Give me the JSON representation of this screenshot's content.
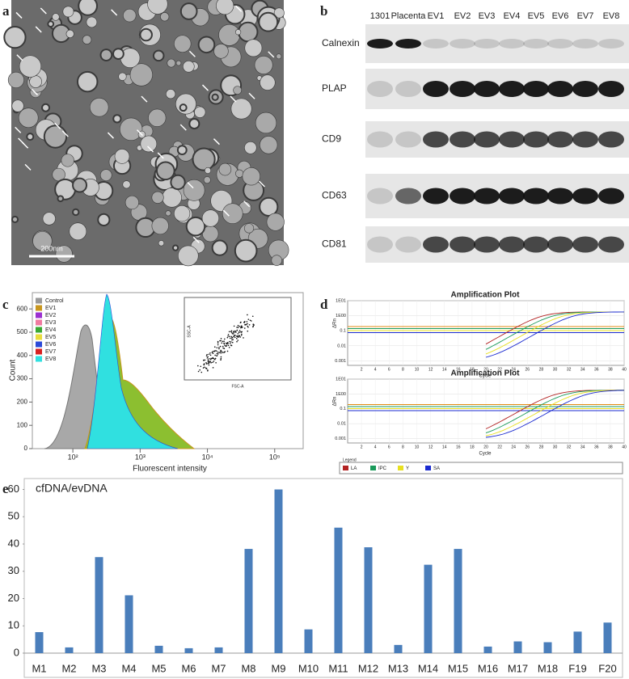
{
  "panel_labels": [
    "a",
    "b",
    "c",
    "d",
    "e"
  ],
  "panel_a": {
    "scale_bar": "200nm"
  },
  "panel_b": {
    "columns": [
      "1301",
      "Placenta",
      "EV1",
      "EV2",
      "EV3",
      "EV4",
      "EV5",
      "EV6",
      "EV7",
      "EV8"
    ],
    "rows": [
      "Calnexin",
      "PLAP",
      "CD9",
      "CD63",
      "CD81"
    ]
  },
  "panel_c": {
    "y_label": "Count",
    "x_label": "Fluorescent intensity",
    "ylim": [
      0,
      670
    ],
    "yticks": [
      0,
      100,
      200,
      300,
      400,
      500,
      600
    ],
    "xlim": [
      25,
      265000
    ],
    "log_x": true,
    "xticks": [
      {
        "value": 100,
        "label": "10²"
      },
      {
        "value": 1000,
        "label": "10³"
      },
      {
        "value": 10000,
        "label": "10⁴"
      },
      {
        "value": 100000,
        "label": "10⁵"
      }
    ],
    "legend": [
      {
        "name": "Control",
        "color": "#9a9a9a"
      },
      {
        "name": "EV1",
        "color": "#c8961e"
      },
      {
        "name": "EV2",
        "color": "#9b30d0"
      },
      {
        "name": "EV3",
        "color": "#f07aa0"
      },
      {
        "name": "EV4",
        "color": "#3aa832"
      },
      {
        "name": "EV5",
        "color": "#e8dc3c"
      },
      {
        "name": "EV6",
        "color": "#2c4ad8"
      },
      {
        "name": "EV7",
        "color": "#d82020"
      },
      {
        "name": "EV8",
        "color": "#30e0e0"
      }
    ],
    "inset_x": "FSC-A",
    "inset_y": "SSC-A"
  },
  "panel_d": {
    "plots": [
      {
        "title": "Amplification Plot"
      },
      {
        "title": "Amplification Plot"
      }
    ],
    "y_label": "ΔRn",
    "x_label": "Cycle",
    "log_y": true,
    "ylim": [
      0.0005,
      10
    ],
    "yticks": [
      {
        "value": 10,
        "label": "1E01"
      },
      {
        "value": 1,
        "label": "1E00"
      },
      0.1,
      0.01,
      0.001
    ],
    "xlim": [
      0,
      40
    ],
    "xticks": [
      2,
      4,
      6,
      8,
      10,
      12,
      14,
      16,
      18,
      20,
      22,
      24,
      26,
      28,
      30,
      32,
      34,
      36,
      38,
      40
    ],
    "legend_title": "Legend",
    "legend": [
      {
        "name": "LA",
        "color": "#b22222"
      },
      {
        "name": "IPC",
        "color": "#1a9a5a"
      },
      {
        "name": "Y",
        "color": "#e8e020"
      },
      {
        "name": "SA",
        "color": "#1a2ad0"
      }
    ]
  },
  "chart_data": {
    "type": "bar",
    "y_label": "cfDNA/evDNA",
    "categories": [
      "M1",
      "M2",
      "M3",
      "M4",
      "M5",
      "M6",
      "M7",
      "M8",
      "M9",
      "M10",
      "M11",
      "M12",
      "M13",
      "M14",
      "M15",
      "M16",
      "M17",
      "M18",
      "F19",
      "F20"
    ],
    "values": [
      7.7,
      2.1,
      35.2,
      21.2,
      2.7,
      1.8,
      2.1,
      38.2,
      60,
      8.7,
      46,
      38.8,
      3,
      32.4,
      38.2,
      2.4,
      4.3,
      4,
      7.9,
      11.2
    ],
    "color": "#4a7ebb",
    "ylim": [
      0,
      64
    ],
    "yticks": [
      0,
      10,
      20,
      30,
      40,
      50,
      60
    ],
    "grid": false
  }
}
